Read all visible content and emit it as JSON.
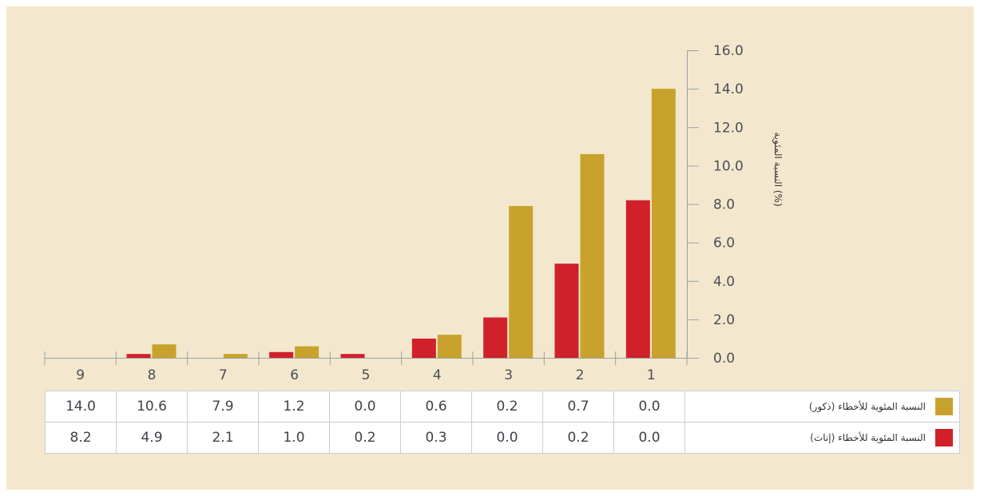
{
  "chart_data": {
    "type": "bar",
    "categories": [
      "1",
      "2",
      "3",
      "4",
      "5",
      "6",
      "7",
      "8",
      "9"
    ],
    "series": [
      {
        "name": "النسبة المئوية للأخطاء (ذكور)",
        "color": "#c8a22c",
        "values": [
          14.0,
          10.6,
          7.9,
          1.2,
          0.0,
          0.6,
          0.2,
          0.7,
          0.0
        ]
      },
      {
        "name": "النسبة المئوية للأخطاء (إناث)",
        "color": "#d0202a",
        "values": [
          8.2,
          4.9,
          2.1,
          1.0,
          0.2,
          0.3,
          0.0,
          0.2,
          0.0
        ]
      }
    ],
    "table_rows": [
      {
        "label": "النسبة المئوية للأخطاء (ذكور)",
        "color": "#c8a22c",
        "cells": [
          "14.0",
          "10.6",
          "7.9",
          "1.2",
          "0.0",
          "0.6",
          "0.2",
          "0.7",
          "0.0"
        ]
      },
      {
        "label": "النسبة المئوية للأخطاء (إناث)",
        "color": "#d0202a",
        "cells": [
          "8.2",
          "4.9",
          "2.1",
          "1.0",
          "0.2",
          "0.3",
          "0.0",
          "0.2",
          "0.0"
        ]
      }
    ],
    "ylabel": "النسبة المئوية (%)",
    "yticks": [
      "0.0",
      "2.0",
      "4.0",
      "6.0",
      "8.0",
      "10.0",
      "12.0",
      "14.0",
      "16.0"
    ],
    "ylim": [
      0,
      16
    ],
    "category_order": "right-to-left",
    "grid": false,
    "legend": "table-right"
  }
}
